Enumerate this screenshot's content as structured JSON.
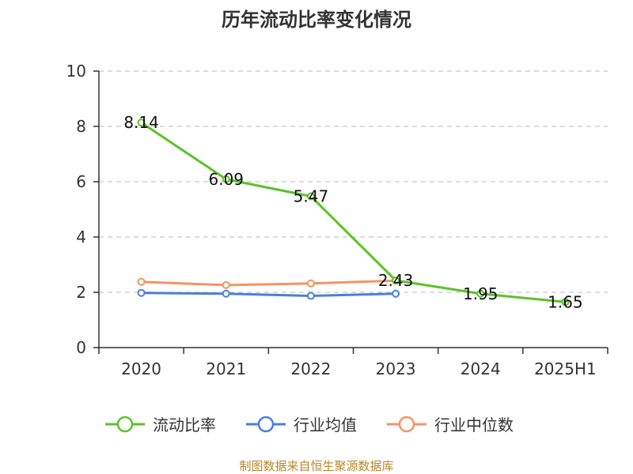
{
  "chart_data": {
    "type": "line",
    "title": "历年流动比率变化情况",
    "categories": [
      "2020",
      "2021",
      "2022",
      "2023",
      "2024",
      "2025H1"
    ],
    "ylim": [
      0,
      10
    ],
    "yticks": [
      "0",
      "2",
      "4",
      "6",
      "8",
      "10"
    ],
    "grid": true,
    "legend_position": "bottom",
    "series": [
      {
        "name": "流动比率",
        "color": "#5cc12a",
        "values": [
          8.14,
          6.09,
          5.47,
          2.43,
          1.95,
          1.65
        ],
        "labels": [
          "8.14",
          "6.09",
          "5.47",
          "2.43",
          "1.95",
          "1.65"
        ]
      },
      {
        "name": "行业均值",
        "color": "#4a7fd9",
        "values": [
          1.98,
          1.95,
          1.87,
          1.95,
          null,
          null
        ],
        "labels": []
      },
      {
        "name": "行业中位数",
        "color": "#f29563",
        "values": [
          2.38,
          2.26,
          2.32,
          2.42,
          null,
          null
        ],
        "labels": []
      }
    ]
  },
  "footer": {
    "source": "制图数据来自恒生聚源数据库"
  }
}
